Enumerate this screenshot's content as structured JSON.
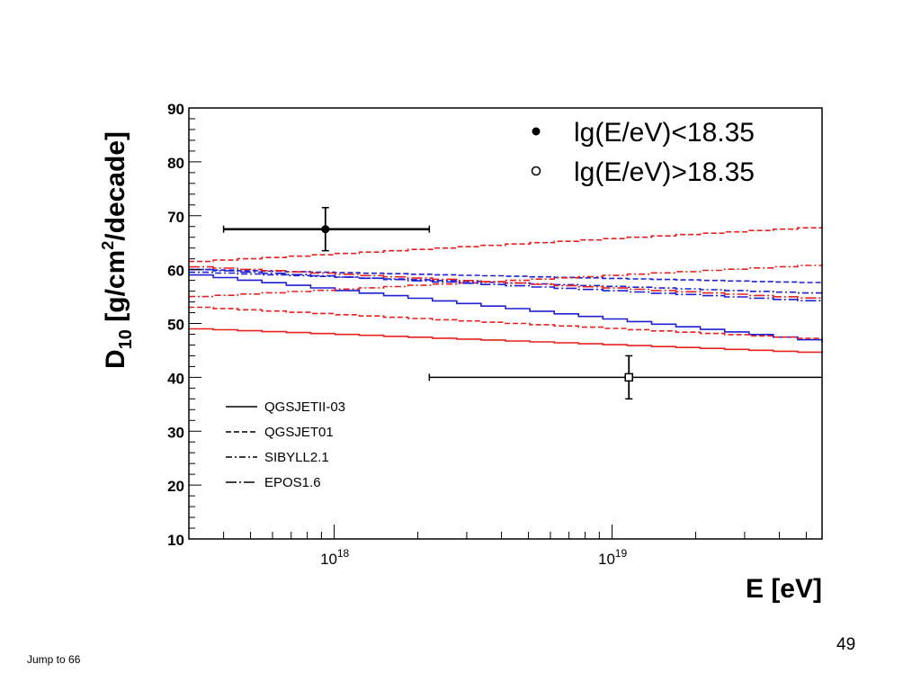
{
  "slide": {
    "page_number": "49",
    "jump_link": "Jump to 66"
  },
  "colors": {
    "red": "#e8201f",
    "blue": "#1f1fd4",
    "data": "#000000"
  },
  "chart_data": {
    "type": "line",
    "xlabel": "E [eV]",
    "ylabel": "D10 [g/cm2/decade]",
    "x_scale": "log",
    "xlim": [
      3e+17,
      5.7e+19
    ],
    "ylim": [
      10,
      90
    ],
    "yticks": [
      10,
      20,
      30,
      40,
      50,
      60,
      70,
      80,
      90
    ],
    "xticks": [
      {
        "value": 1e+18,
        "label": "10",
        "exp": "18"
      },
      {
        "value": 1e+19,
        "label": "10",
        "exp": "19"
      }
    ],
    "legend_models": {
      "placement": "bottom-left",
      "entries": [
        {
          "label": "QGSJETII-03",
          "style": "solid"
        },
        {
          "label": "QGSJET01",
          "style": "dashed"
        },
        {
          "label": "SIBYLL2.1",
          "style": "dashdot"
        },
        {
          "label": "EPOS1.6",
          "style": "longdashdot"
        }
      ]
    },
    "legend_data": {
      "placement": "top-right",
      "entries": [
        {
          "label": "lg(E/eV)<18.35",
          "marker": "filled"
        },
        {
          "label": "lg(E/eV)>18.35",
          "marker": "open"
        }
      ]
    },
    "series": [
      {
        "model": "QGSJETII-03",
        "style": "solid",
        "color": "red",
        "x": [
          3e+17,
          5.7e+19
        ],
        "y": [
          49,
          44.5
        ]
      },
      {
        "model": "QGSJETII-03",
        "style": "solid",
        "color": "blue",
        "x": [
          3e+17,
          5.7e+19
        ],
        "y": [
          59,
          46.5
        ]
      },
      {
        "model": "QGSJET01",
        "style": "dashed",
        "color": "red",
        "x": [
          3e+17,
          5.7e+19
        ],
        "y": [
          61.5,
          68
        ]
      },
      {
        "model": "QGSJET01",
        "style": "dashed",
        "color": "red",
        "x": [
          3e+17,
          5.7e+19
        ],
        "y": [
          53,
          47
        ]
      },
      {
        "model": "QGSJET01",
        "style": "dashed",
        "color": "blue",
        "x": [
          3e+17,
          5.7e+19
        ],
        "y": [
          60,
          57.5
        ]
      },
      {
        "model": "SIBYLL2.1",
        "style": "dashdot",
        "color": "red",
        "x": [
          3e+17,
          5.7e+19
        ],
        "y": [
          55,
          61
        ]
      },
      {
        "model": "SIBYLL2.1",
        "style": "dashdot",
        "color": "blue",
        "x": [
          3e+17,
          5.7e+19
        ],
        "y": [
          59.5,
          55.5
        ]
      },
      {
        "model": "EPOS1.6",
        "style": "longdashdot",
        "color": "red",
        "x": [
          3e+17,
          5.7e+19
        ],
        "y": [
          60.5,
          54.5
        ]
      },
      {
        "model": "EPOS1.6",
        "style": "longdashdot",
        "color": "blue",
        "x": [
          3e+17,
          5.7e+19
        ],
        "y": [
          60,
          54
        ]
      }
    ],
    "points": [
      {
        "label": "lg(E/eV)<18.35",
        "marker": "filled",
        "x": 9.3e+17,
        "y": 67.5,
        "xerr_low": 4e+17,
        "xerr_high": 2.2e+18,
        "yerr": 4
      },
      {
        "label": "lg(E/eV)>18.35",
        "marker": "open",
        "x": 1.15e+19,
        "y": 40,
        "xerr_low": 2.2e+18,
        "xerr_high": 5.7e+19,
        "yerr": 4
      }
    ]
  }
}
